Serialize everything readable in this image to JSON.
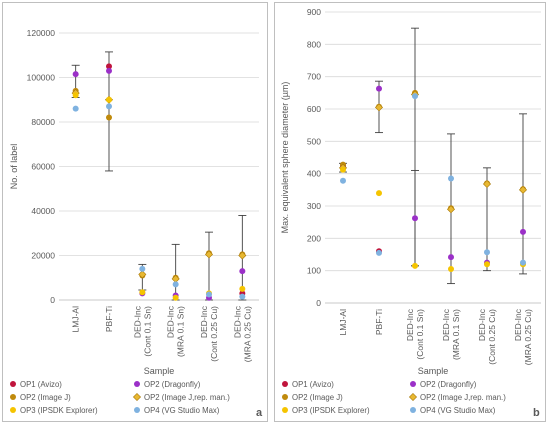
{
  "chart_data": [
    {
      "type": "scatter",
      "panel_label": "a",
      "xlabel": "Sample",
      "ylabel": "No. of label",
      "ylim": [
        0,
        120000
      ],
      "yticks": [
        0,
        20000,
        40000,
        60000,
        80000,
        100000,
        120000
      ],
      "ytick_labels": [
        "0",
        "20000",
        "40000",
        "60000",
        "80000",
        "100000",
        "120000"
      ],
      "categories": [
        [
          "LMJ-Al"
        ],
        [
          "PBF-Ti"
        ],
        [
          "DED-Inc",
          "(Cont 0.1 Sn)"
        ],
        [
          "DED-Inc",
          "(MRA 0.1 Sn)"
        ],
        [
          "DED-Inc",
          "(Cont 0.25 Cu)"
        ],
        [
          "DED-Inc",
          "(MRA 0.25 Cu)"
        ]
      ],
      "grid": true,
      "legend_position": "bottom",
      "error_bars": [
        {
          "category": 0,
          "mean": 95000,
          "low": 91000,
          "high": 105500
        },
        {
          "category": 1,
          "mean": 96000,
          "low": 58000,
          "high": 111500
        },
        {
          "category": 2,
          "mean": 10000,
          "low": 4500,
          "high": 16000
        },
        {
          "category": 3,
          "mean": 5000,
          "low": 0,
          "high": 25000
        },
        {
          "category": 4,
          "mean": 9000,
          "low": 0,
          "high": 30500
        },
        {
          "category": 5,
          "mean": 9000,
          "low": 0,
          "high": 38000
        }
      ],
      "series": [
        {
          "name": "OP1 (Avizo)",
          "color": "#c0143c",
          "values": [
            null,
            105000,
            null,
            null,
            null,
            3000
          ]
        },
        {
          "name": "OP2 (Dragonfly)",
          "color": "#9b30c8",
          "values": [
            101500,
            103000,
            3000,
            2000,
            1000,
            13000
          ]
        },
        {
          "name": "OP2 (Image J)",
          "color": "#c08a0c",
          "values": [
            94000,
            82000,
            11000,
            10000,
            21000,
            20500
          ]
        },
        {
          "name": "OP2 (Image J,rep. man.)",
          "color": "#e8b832",
          "values": [
            93000,
            90000,
            11500,
            9500,
            20500,
            20000
          ]
        },
        {
          "name": "OP3 (IPSDK Explorer)",
          "color": "#f5c400",
          "values": [
            92000,
            90000,
            3500,
            1000,
            3000,
            5000
          ]
        },
        {
          "name": "OP4 (VG Studio Max)",
          "color": "#7fb2e0",
          "values": [
            86000,
            87000,
            14000,
            7000,
            2500,
            1500
          ]
        }
      ]
    },
    {
      "type": "scatter",
      "panel_label": "b",
      "xlabel": "Sample",
      "ylabel": "Max. equivalent sphere diameter (µm)",
      "ylim": [
        0,
        900
      ],
      "yticks": [
        0,
        100,
        200,
        300,
        400,
        500,
        600,
        700,
        800,
        900
      ],
      "ytick_labels": [
        "0",
        "100",
        "200",
        "300",
        "400",
        "500",
        "600",
        "700",
        "800",
        "900"
      ],
      "categories": [
        [
          "LMJ-Al"
        ],
        [
          "PBF-Ti"
        ],
        [
          "DED-Inc",
          "(Cont 0.1 Sn)"
        ],
        [
          "DED-Inc",
          "(MRA 0.1 Sn)"
        ],
        [
          "DED-Inc",
          "(Cont 0.25 Cu)"
        ],
        [
          "DED-Inc",
          "(MRA 0.25 Cu)"
        ]
      ],
      "grid": true,
      "legend_position": "bottom",
      "error_bars": [
        {
          "category": 0,
          "mean": 415,
          "low": 405,
          "high": 432
        },
        {
          "category": 1,
          "mean": 605,
          "low": 527,
          "high": 686
        },
        {
          "category": 2,
          "mean": 410,
          "low": 115,
          "high": 850
        },
        {
          "category": 2,
          "mean": 280,
          "low": 115,
          "high": 410
        },
        {
          "category": 3,
          "mean": 240,
          "low": 60,
          "high": 523
        },
        {
          "category": 4,
          "mean": 180,
          "low": 100,
          "high": 418
        },
        {
          "category": 5,
          "mean": 230,
          "low": 90,
          "high": 585
        }
      ],
      "series": [
        {
          "name": "OP1 (Avizo)",
          "color": "#c0143c",
          "values": [
            425,
            160,
            null,
            null,
            null,
            null
          ]
        },
        {
          "name": "OP2 (Dragonfly)",
          "color": "#9b30c8",
          "values": [
            420,
            663,
            262,
            142,
            125,
            220
          ]
        },
        {
          "name": "OP2 (Image J)",
          "color": "#c08a0c",
          "values": [
            428,
            607,
            650,
            293,
            370,
            352
          ]
        },
        {
          "name": "OP2 (Image J,rep. man.)",
          "color": "#e8b832",
          "values": [
            418,
            605,
            645,
            290,
            368,
            350
          ]
        },
        {
          "name": "OP3 (IPSDK Explorer)",
          "color": "#f5c400",
          "values": [
            412,
            340,
            115,
            105,
            120,
            120
          ]
        },
        {
          "name": "OP4 (VG Studio Max)",
          "color": "#7fb2e0",
          "values": [
            378,
            155,
            640,
            385,
            157,
            125
          ]
        }
      ]
    }
  ]
}
